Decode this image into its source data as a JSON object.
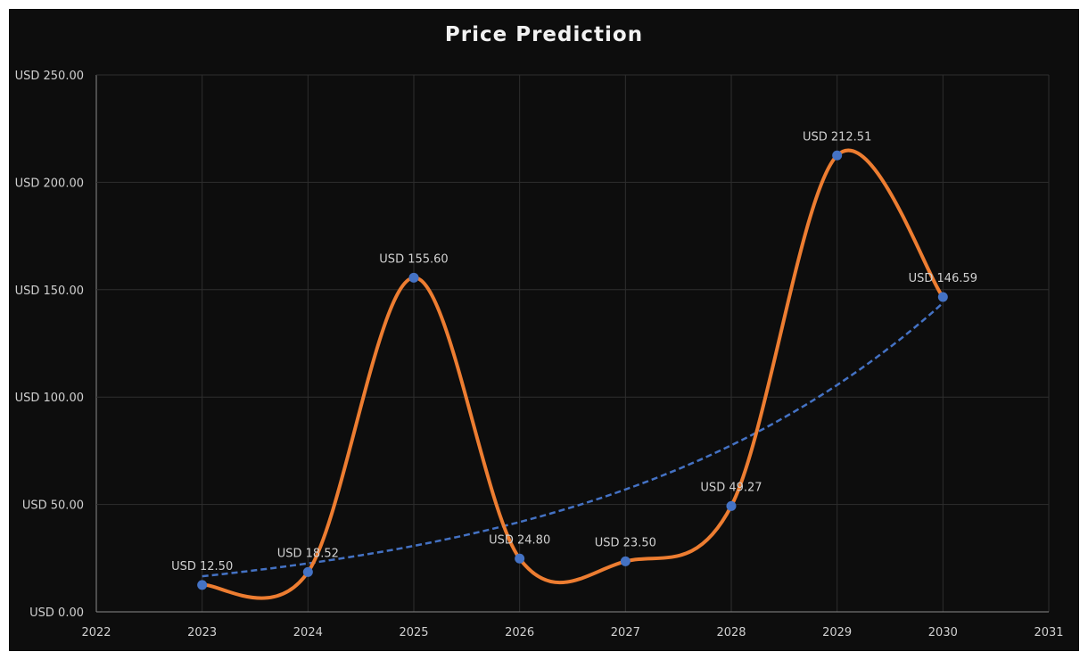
{
  "chart_data": {
    "type": "line",
    "title": "Price Prediction",
    "xlabel": "",
    "ylabel": "",
    "x": [
      2023,
      2024,
      2025,
      2026,
      2027,
      2028,
      2029,
      2030
    ],
    "values": [
      12.5,
      18.52,
      155.6,
      24.8,
      23.5,
      49.27,
      212.51,
      146.59
    ],
    "data_labels": [
      "USD 12.50",
      "USD 18.52",
      "USD 155.60",
      "USD 24.80",
      "USD 23.50",
      "USD 49.27",
      "USD 212.51",
      "USD 146.59"
    ],
    "xlim": [
      2022,
      2031
    ],
    "ylim": [
      0,
      250
    ],
    "x_ticks": [
      "2022",
      "2023",
      "2024",
      "2025",
      "2026",
      "2027",
      "2028",
      "2029",
      "2030",
      "2031"
    ],
    "y_ticks": [
      "USD 0.00",
      "USD 50.00",
      "USD 100.00",
      "USD 150.00",
      "USD 200.00",
      "USD 250.00"
    ],
    "smoothed": true,
    "grid": true,
    "trendline": {
      "type": "exponential",
      "style": "dashed",
      "color": "#4472c4"
    },
    "colors": {
      "line": "#ed7d31",
      "markers": "#4472c4",
      "background": "#0d0d0d",
      "grid": "#2e2e2e"
    }
  }
}
